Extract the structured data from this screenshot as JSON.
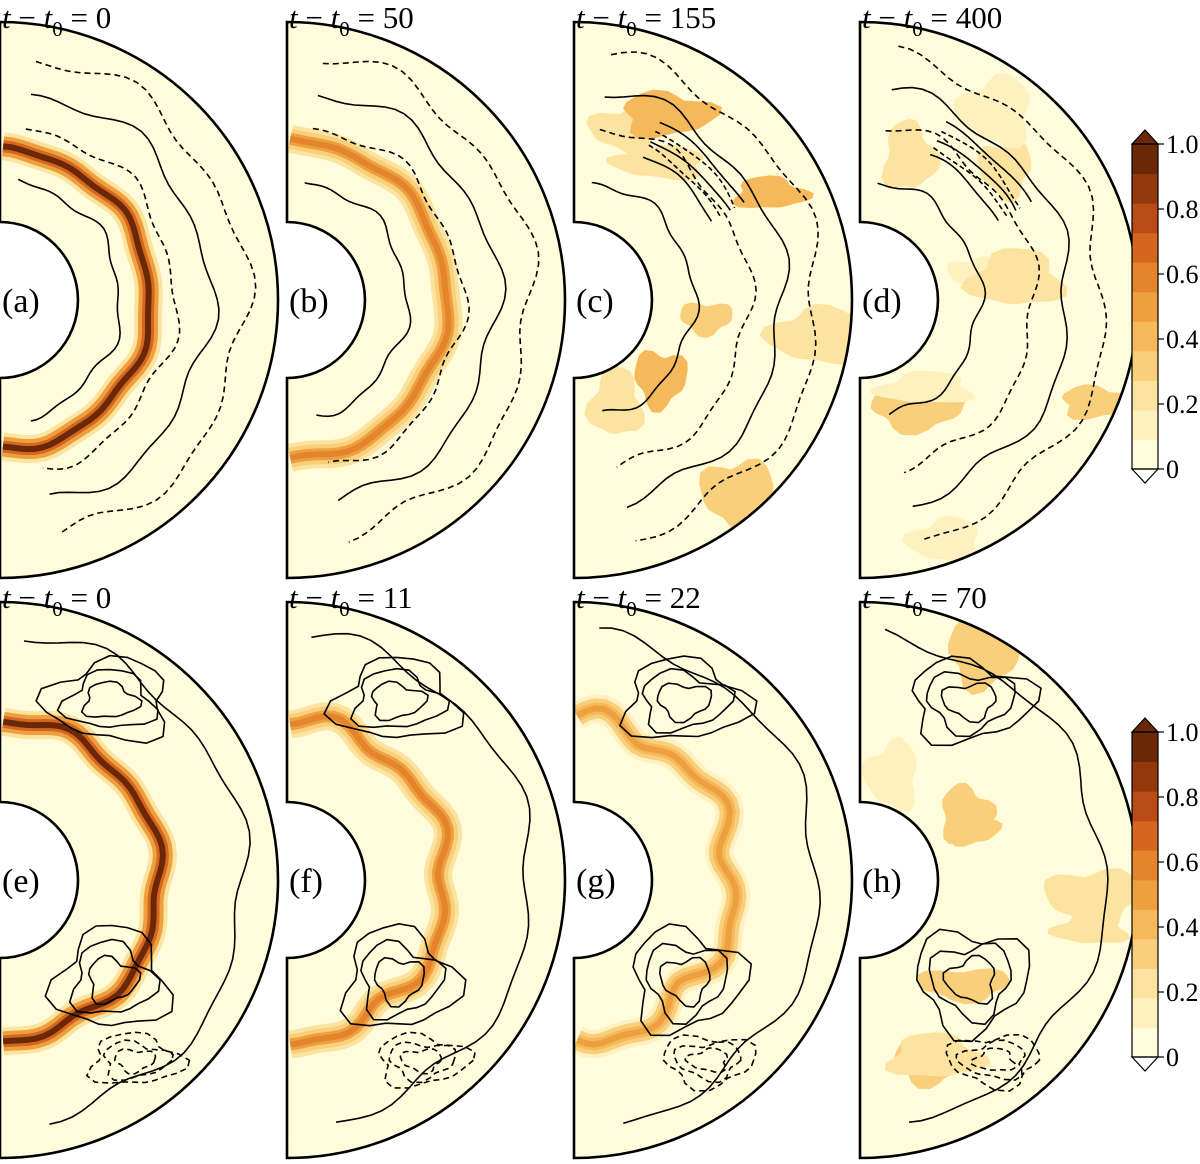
{
  "chart_data": {
    "type": "heatmap",
    "description_kind": "polar meridional contour panels with filled color field and line contours",
    "colorbar": {
      "ticks": [
        "0",
        "0.2",
        "0.4",
        "0.6",
        "0.8",
        "1.0"
      ],
      "range": [
        0,
        1.0
      ],
      "extend": "both",
      "colors": [
        "#fffcdc",
        "#fff0bf",
        "#fde3a0",
        "#f9cf7c",
        "#f5b85a",
        "#eea03f",
        "#e4842c",
        "#d4661f",
        "#b84c14",
        "#91390b",
        "#6b2806"
      ]
    },
    "rows": [
      {
        "panels": [
          {
            "label": "(a)",
            "title_lhs": "t",
            "title_sub": "0",
            "title_value": "0",
            "ring": true,
            "peak": 0.97
          },
          {
            "label": "(b)",
            "title_lhs": "t",
            "title_sub": "0",
            "title_value": "50",
            "ring": true,
            "peak": 0.6
          },
          {
            "label": "(c)",
            "title_lhs": "t",
            "title_sub": "0",
            "title_value": "155",
            "ring": false,
            "peak": 0.45
          },
          {
            "label": "(d)",
            "title_lhs": "t",
            "title_sub": "0",
            "title_value": "400",
            "ring": false,
            "peak": 0.3
          }
        ]
      },
      {
        "panels": [
          {
            "label": "(e)",
            "title_lhs": "t",
            "title_sub": "0",
            "title_value": "0",
            "ring": true,
            "peak": 0.97
          },
          {
            "label": "(f)",
            "title_lhs": "t",
            "title_sub": "0",
            "title_value": "11",
            "ring": true,
            "peak": 0.6
          },
          {
            "label": "(g)",
            "title_lhs": "t",
            "title_sub": "0",
            "title_value": "22",
            "ring": true,
            "peak": 0.5
          },
          {
            "label": "(h)",
            "title_lhs": "t",
            "title_sub": "0",
            "title_value": "70",
            "ring": false,
            "peak": 0.35
          }
        ]
      }
    ]
  }
}
